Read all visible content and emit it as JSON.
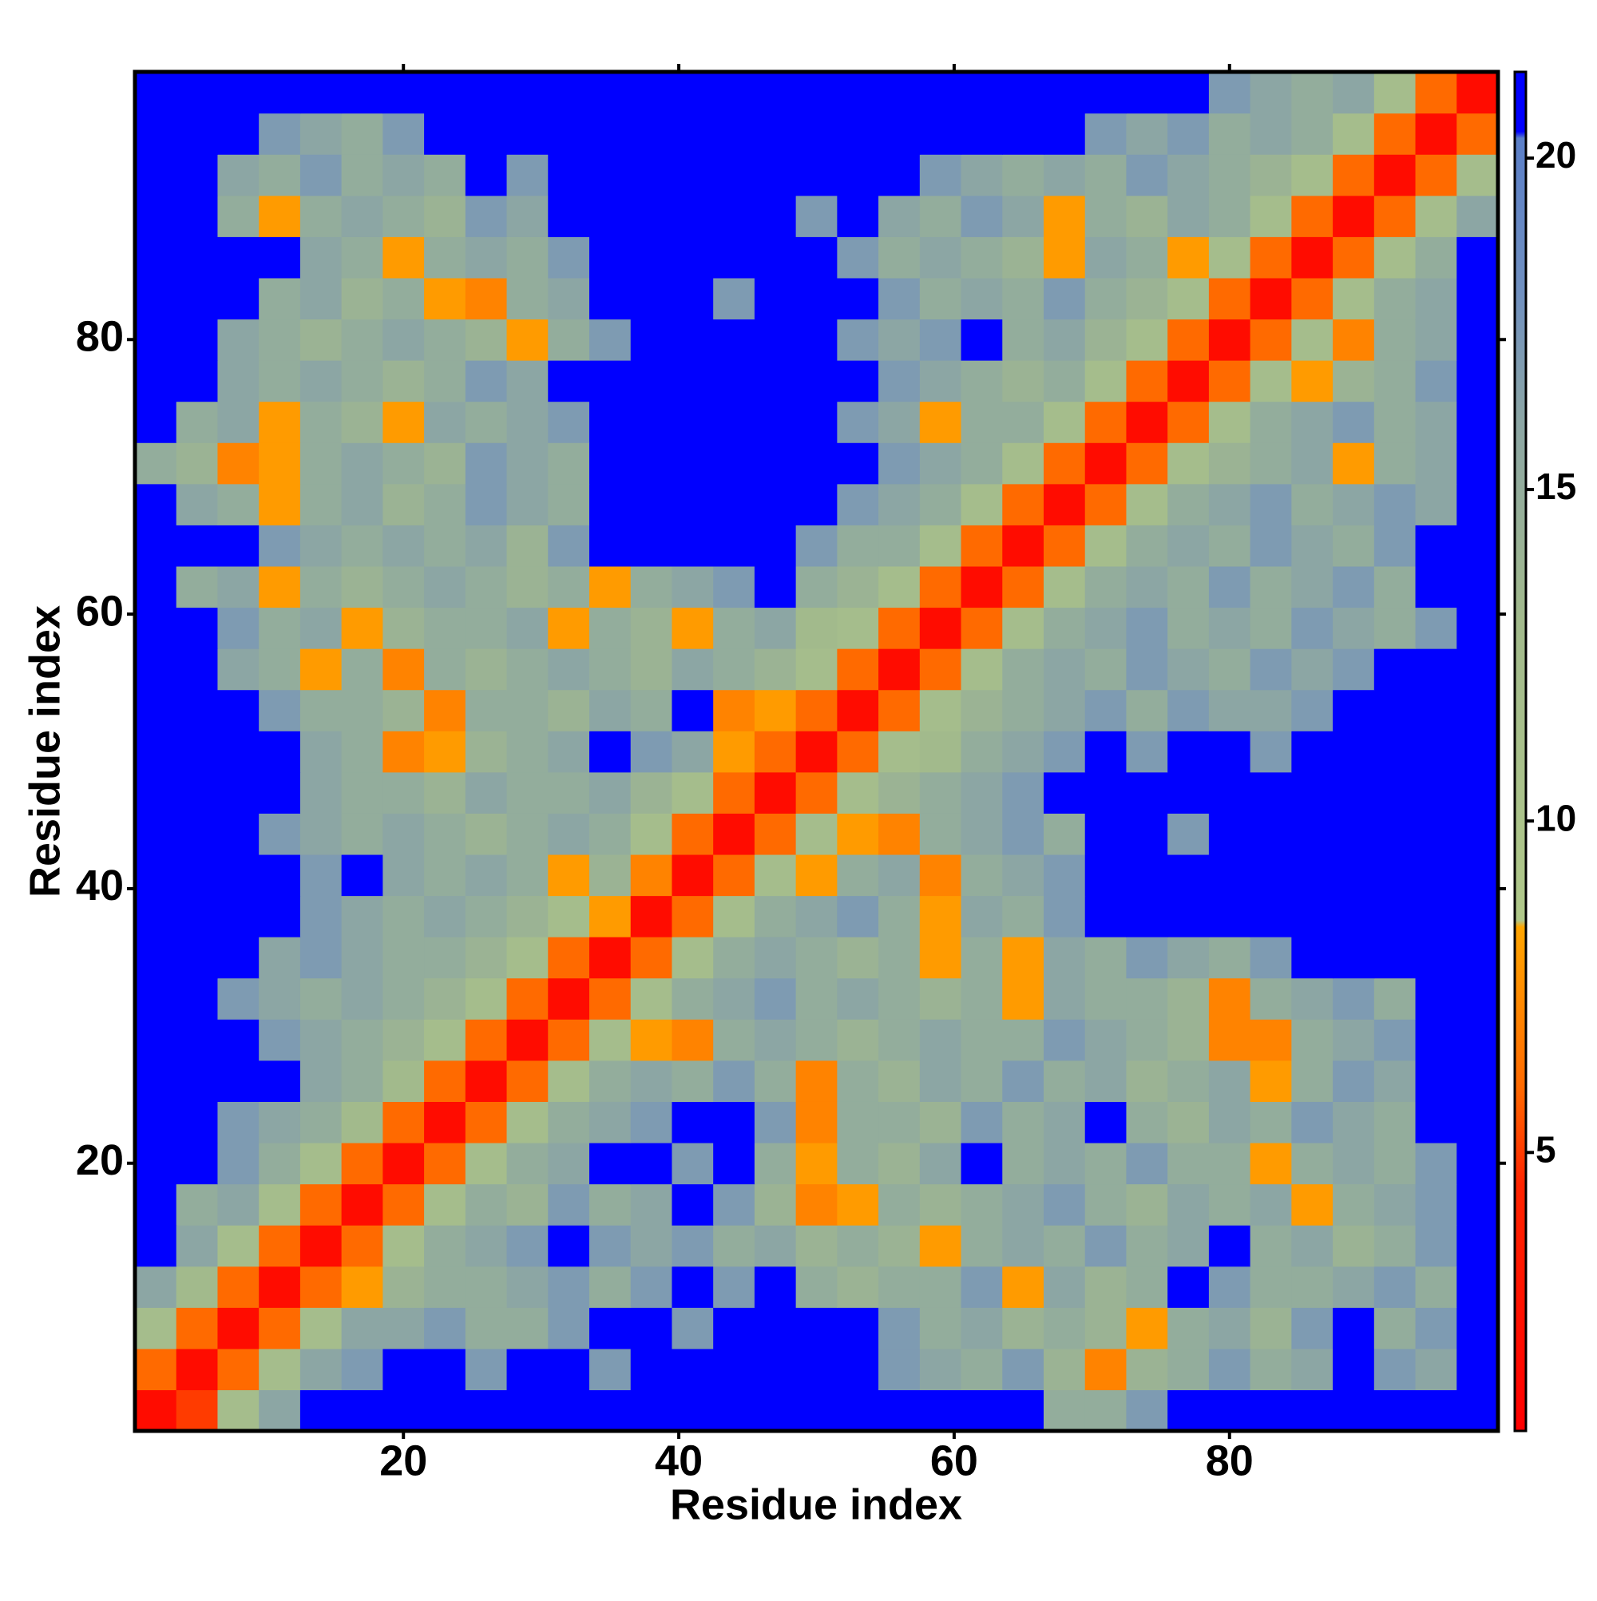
{
  "chart_data": {
    "type": "heatmap",
    "xlabel": "Residue index",
    "ylabel": "Residue index",
    "x": [
      2,
      5,
      8,
      11,
      14,
      17,
      20,
      23,
      26,
      29,
      32,
      35,
      38,
      41,
      44,
      47,
      50,
      53,
      56,
      59,
      62,
      65,
      68,
      71,
      74,
      77,
      80,
      83,
      86,
      89,
      92,
      95,
      98
    ],
    "y": [
      2,
      5,
      8,
      11,
      14,
      17,
      20,
      23,
      26,
      29,
      32,
      35,
      38,
      41,
      44,
      47,
      50,
      53,
      56,
      59,
      62,
      65,
      68,
      71,
      74,
      77,
      80,
      83,
      86,
      89,
      92,
      95,
      98
    ],
    "z": [
      [
        2,
        5,
        12,
        16,
        21,
        21,
        21,
        21,
        21,
        21,
        21,
        21,
        21,
        21,
        21,
        21,
        21,
        21,
        21,
        21,
        21,
        21,
        15,
        15,
        17,
        21,
        21,
        21,
        21,
        21,
        21,
        21,
        21
      ],
      [
        6,
        2,
        6,
        12,
        16,
        17,
        21,
        21,
        17,
        21,
        21,
        17,
        21,
        21,
        21,
        21,
        21,
        21,
        17,
        16,
        15,
        17,
        14,
        7,
        14,
        15,
        17,
        15,
        16,
        21,
        17,
        16,
        21
      ],
      [
        12,
        6,
        2,
        6,
        12,
        16,
        16,
        17,
        15,
        15,
        17,
        21,
        21,
        17,
        21,
        21,
        21,
        21,
        17,
        15,
        16,
        14,
        15,
        14,
        8,
        15,
        16,
        14,
        17,
        21,
        15,
        17,
        21
      ],
      [
        16,
        13,
        6,
        2,
        6,
        8,
        14,
        15,
        15,
        16,
        17,
        15,
        17,
        21,
        17,
        21,
        15,
        14,
        15,
        15,
        17,
        8,
        16,
        14,
        15,
        21,
        17,
        15,
        15,
        16,
        17,
        15,
        21
      ],
      [
        21,
        16,
        12,
        6,
        2,
        6,
        12,
        15,
        16,
        17,
        21,
        17,
        16,
        17,
        15,
        16,
        14,
        15,
        14,
        8,
        15,
        16,
        15,
        17,
        15,
        16,
        21,
        15,
        16,
        14,
        15,
        17,
        21
      ],
      [
        21,
        15,
        16,
        12,
        6,
        2,
        6,
        12,
        15,
        14,
        17,
        15,
        16,
        21,
        17,
        14,
        7,
        8,
        15,
        14,
        15,
        16,
        17,
        15,
        14,
        16,
        15,
        16,
        8,
        15,
        16,
        17,
        21
      ],
      [
        21,
        21,
        17,
        15,
        12,
        6,
        2,
        6,
        12,
        15,
        16,
        21,
        21,
        17,
        21,
        15,
        8,
        15,
        14,
        16,
        21,
        15,
        16,
        15,
        17,
        15,
        15,
        8,
        15,
        16,
        15,
        17,
        21
      ],
      [
        21,
        21,
        17,
        16,
        15,
        13,
        6,
        2,
        6,
        12,
        15,
        16,
        17,
        21,
        21,
        17,
        7,
        15,
        15,
        14,
        17,
        15,
        16,
        21,
        15,
        14,
        16,
        15,
        17,
        16,
        15,
        21,
        21
      ],
      [
        21,
        21,
        21,
        21,
        16,
        15,
        13,
        6,
        2,
        6,
        12,
        15,
        16,
        15,
        17,
        15,
        7,
        15,
        14,
        16,
        15,
        17,
        15,
        16,
        14,
        15,
        16,
        8,
        15,
        17,
        16,
        21,
        21
      ],
      [
        21,
        21,
        21,
        17,
        16,
        15,
        14,
        12,
        6,
        2,
        6,
        12,
        8,
        7,
        15,
        16,
        15,
        14,
        15,
        16,
        15,
        15,
        17,
        16,
        15,
        14,
        7,
        7,
        15,
        16,
        17,
        21,
        21
      ],
      [
        21,
        21,
        17,
        16,
        15,
        16,
        15,
        14,
        12,
        6,
        2,
        6,
        12,
        15,
        16,
        17,
        15,
        16,
        15,
        14,
        15,
        8,
        16,
        15,
        15,
        14,
        7,
        15,
        16,
        17,
        15,
        21,
        21
      ],
      [
        21,
        21,
        21,
        16,
        17,
        16,
        15,
        15,
        14,
        12,
        6,
        2,
        6,
        12,
        15,
        16,
        15,
        14,
        15,
        8,
        15,
        8,
        16,
        15,
        17,
        16,
        15,
        17,
        21,
        21,
        21,
        21,
        21
      ],
      [
        21,
        21,
        21,
        21,
        17,
        16,
        15,
        16,
        15,
        14,
        12,
        8,
        2,
        6,
        12,
        15,
        16,
        17,
        15,
        8,
        16,
        15,
        17,
        21,
        21,
        21,
        21,
        21,
        21,
        21,
        21,
        21,
        21
      ],
      [
        21,
        21,
        21,
        21,
        17,
        21,
        16,
        15,
        16,
        15,
        8,
        14,
        7,
        2,
        6,
        12,
        8,
        15,
        16,
        7,
        15,
        16,
        17,
        21,
        21,
        21,
        21,
        21,
        21,
        21,
        21,
        21,
        21
      ],
      [
        21,
        21,
        21,
        17,
        16,
        15,
        16,
        15,
        14,
        15,
        16,
        15,
        12,
        6,
        2,
        6,
        12,
        8,
        7,
        15,
        16,
        17,
        15,
        21,
        21,
        17,
        21,
        21,
        21,
        21,
        21,
        21,
        21
      ],
      [
        21,
        21,
        21,
        21,
        16,
        15,
        15,
        14,
        16,
        15,
        15,
        16,
        14,
        12,
        6,
        2,
        6,
        12,
        14,
        15,
        16,
        17,
        21,
        21,
        21,
        21,
        21,
        21,
        21,
        21,
        21,
        21,
        21
      ],
      [
        21,
        21,
        21,
        21,
        16,
        15,
        7,
        8,
        14,
        15,
        16,
        21,
        17,
        16,
        8,
        6,
        2,
        6,
        12,
        13,
        15,
        16,
        17,
        21,
        17,
        21,
        21,
        17,
        21,
        21,
        21,
        21,
        21
      ],
      [
        21,
        21,
        21,
        17,
        15,
        15,
        14,
        7,
        15,
        15,
        14,
        16,
        15,
        21,
        7,
        8,
        6,
        2,
        6,
        12,
        14,
        15,
        16,
        17,
        15,
        17,
        16,
        16,
        17,
        21,
        21,
        21,
        21
      ],
      [
        21,
        21,
        16,
        15,
        8,
        15,
        7,
        15,
        14,
        15,
        16,
        15,
        14,
        16,
        15,
        14,
        12,
        6,
        2,
        6,
        12,
        15,
        16,
        15,
        17,
        16,
        15,
        17,
        16,
        17,
        21,
        21,
        21
      ],
      [
        21,
        21,
        17,
        15,
        16,
        8,
        14,
        15,
        15,
        16,
        8,
        15,
        14,
        8,
        15,
        16,
        13,
        12,
        6,
        2,
        6,
        12,
        15,
        16,
        17,
        15,
        16,
        15,
        17,
        16,
        15,
        17,
        21
      ],
      [
        21,
        15,
        16,
        8,
        15,
        14,
        15,
        16,
        15,
        14,
        15,
        8,
        15,
        16,
        17,
        21,
        15,
        14,
        12,
        6,
        2,
        6,
        12,
        15,
        16,
        15,
        17,
        15,
        16,
        17,
        15,
        21,
        21
      ],
      [
        21,
        21,
        21,
        17,
        16,
        15,
        16,
        15,
        16,
        14,
        17,
        21,
        21,
        21,
        21,
        21,
        17,
        15,
        15,
        12,
        6,
        2,
        6,
        12,
        15,
        16,
        15,
        17,
        16,
        15,
        17,
        21,
        21
      ],
      [
        21,
        16,
        15,
        8,
        15,
        16,
        14,
        15,
        17,
        16,
        15,
        21,
        21,
        21,
        21,
        21,
        21,
        17,
        16,
        15,
        12,
        6,
        2,
        6,
        12,
        15,
        16,
        17,
        15,
        16,
        17,
        16,
        21
      ],
      [
        15,
        14,
        7,
        8,
        15,
        16,
        15,
        14,
        17,
        16,
        15,
        21,
        21,
        21,
        21,
        21,
        21,
        21,
        17,
        16,
        15,
        12,
        6,
        2,
        6,
        12,
        14,
        15,
        16,
        8,
        15,
        16,
        21
      ],
      [
        21,
        15,
        16,
        8,
        15,
        14,
        8,
        16,
        15,
        16,
        17,
        21,
        21,
        21,
        21,
        21,
        21,
        17,
        16,
        8,
        15,
        15,
        12,
        6,
        2,
        6,
        12,
        15,
        16,
        17,
        15,
        16,
        21
      ],
      [
        21,
        21,
        16,
        15,
        16,
        15,
        14,
        15,
        17,
        16,
        21,
        21,
        21,
        21,
        21,
        21,
        21,
        21,
        17,
        16,
        15,
        14,
        15,
        12,
        6,
        2,
        6,
        12,
        8,
        14,
        15,
        17,
        21
      ],
      [
        21,
        21,
        16,
        15,
        14,
        15,
        16,
        15,
        14,
        8,
        15,
        17,
        21,
        21,
        21,
        21,
        21,
        17,
        16,
        17,
        21,
        15,
        16,
        14,
        12,
        6,
        2,
        6,
        12,
        7,
        15,
        16,
        21
      ],
      [
        21,
        21,
        21,
        15,
        16,
        14,
        15,
        8,
        7,
        15,
        16,
        21,
        21,
        21,
        17,
        21,
        21,
        21,
        17,
        15,
        16,
        15,
        17,
        15,
        14,
        12,
        6,
        2,
        6,
        12,
        15,
        16,
        21
      ],
      [
        21,
        21,
        21,
        21,
        16,
        15,
        8,
        15,
        16,
        15,
        17,
        21,
        21,
        21,
        21,
        21,
        21,
        17,
        15,
        16,
        15,
        14,
        8,
        16,
        15,
        8,
        12,
        6,
        2,
        6,
        12,
        15,
        21
      ],
      [
        21,
        21,
        15,
        8,
        15,
        16,
        15,
        14,
        17,
        16,
        21,
        21,
        21,
        21,
        21,
        21,
        17,
        21,
        16,
        15,
        17,
        16,
        8,
        15,
        14,
        16,
        15,
        12,
        6,
        2,
        6,
        12,
        16
      ],
      [
        21,
        21,
        16,
        15,
        17,
        15,
        16,
        15,
        21,
        17,
        21,
        21,
        21,
        21,
        21,
        21,
        21,
        21,
        21,
        17,
        16,
        15,
        16,
        15,
        17,
        16,
        15,
        14,
        12,
        6,
        2,
        6,
        12
      ],
      [
        21,
        21,
        21,
        17,
        16,
        15,
        17,
        21,
        21,
        21,
        21,
        21,
        21,
        21,
        21,
        21,
        21,
        21,
        21,
        21,
        21,
        21,
        21,
        17,
        16,
        17,
        15,
        16,
        15,
        12,
        6,
        2,
        6
      ],
      [
        21,
        21,
        21,
        21,
        21,
        21,
        21,
        21,
        21,
        21,
        21,
        21,
        21,
        21,
        21,
        21,
        21,
        21,
        21,
        21,
        21,
        21,
        21,
        21,
        21,
        21,
        17,
        16,
        15,
        16,
        12,
        6,
        2
      ]
    ],
    "xlim": [
      0.5,
      99.5
    ],
    "ylim": [
      0.5,
      99.5
    ],
    "xticks": [
      20,
      40,
      60,
      80
    ],
    "yticks": [
      20,
      40,
      60,
      80
    ],
    "colorbar": {
      "lim": [
        0.8,
        21.3
      ],
      "ticks": [
        5,
        10,
        15,
        20
      ]
    },
    "colorscale": [
      [
        0.8,
        "#ff0000"
      ],
      [
        4.5,
        "#ff2400"
      ],
      [
        6,
        "#ff6a00"
      ],
      [
        8.4,
        "#ffa500"
      ],
      [
        8.5,
        "#b0c88a"
      ],
      [
        13,
        "#a2ba8c"
      ],
      [
        16,
        "#8ca6a4"
      ],
      [
        18,
        "#7090c0"
      ],
      [
        20.3,
        "#5b7fc8"
      ],
      [
        20.4,
        "#0000ff"
      ],
      [
        21.3,
        "#0000ff"
      ]
    ]
  }
}
